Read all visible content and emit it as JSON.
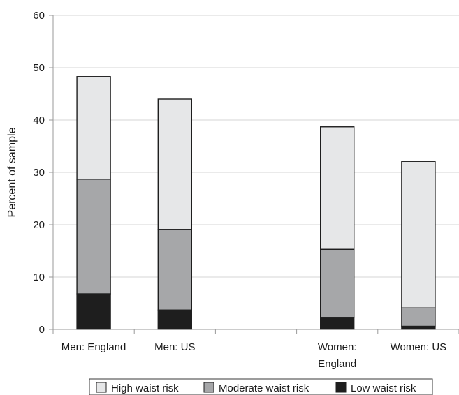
{
  "chart_data": {
    "type": "bar",
    "stacked": true,
    "categories": [
      "Men: England",
      "Men: US",
      "",
      "Women: England",
      "Women: US"
    ],
    "category_label_lines": [
      [
        "Men: England"
      ],
      [
        "Men: US"
      ],
      [],
      [
        "Women:",
        "England"
      ],
      [
        "Women: US"
      ]
    ],
    "series": [
      {
        "name": "Low waist risk",
        "values": [
          6.8,
          3.7,
          null,
          2.3,
          0.6
        ],
        "color": "#1e1e1e"
      },
      {
        "name": "Moderate waist risk",
        "values": [
          21.9,
          15.4,
          null,
          13.0,
          3.5
        ],
        "color": "#a6a7a9"
      },
      {
        "name": "High waist risk",
        "values": [
          19.6,
          24.9,
          null,
          23.4,
          28.0
        ],
        "color": "#e6e7e8"
      }
    ],
    "legend_order": [
      "High waist risk",
      "Moderate waist risk",
      "Low waist risk"
    ],
    "ylabel": "Percent of sample",
    "ylim": [
      0,
      60
    ],
    "yticks": [
      0,
      10,
      20,
      30,
      40,
      50,
      60
    ],
    "grid": true,
    "legend_position": "bottom"
  }
}
